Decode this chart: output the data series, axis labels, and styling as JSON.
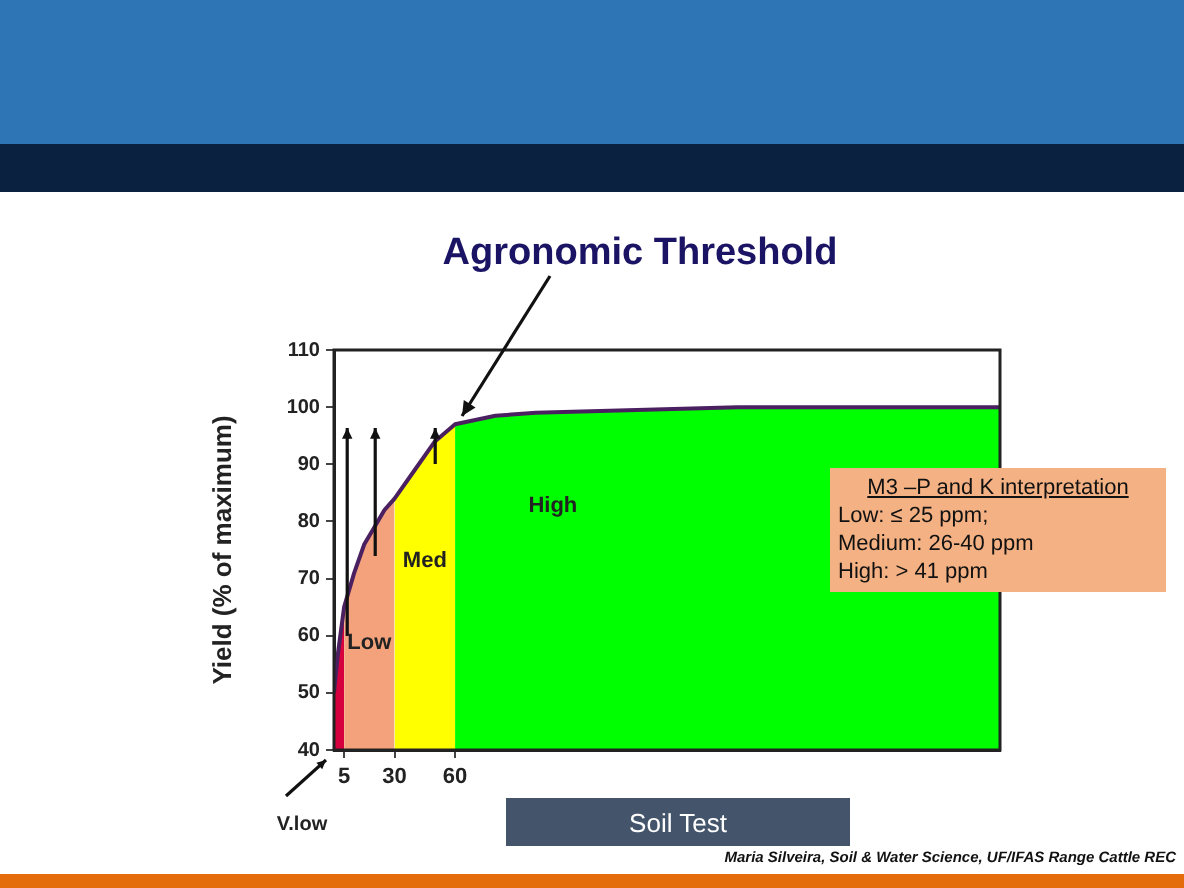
{
  "chart_data": {
    "type": "area",
    "title": "Agronomic Threshold",
    "xlabel": "Soil Test",
    "ylabel": "Yield (% of maximum)",
    "xlim": [
      0,
      330
    ],
    "xticks": [
      5,
      30,
      60
    ],
    "ylim": [
      40,
      110
    ],
    "yticks": [
      40,
      50,
      60,
      70,
      80,
      90,
      100,
      110
    ],
    "marker": "none",
    "series": [
      {
        "name": "V.low",
        "color": "#d6003f",
        "x": [
          0,
          2,
          5
        ],
        "values": [
          50,
          57,
          65
        ]
      },
      {
        "name": "Low",
        "color": "#f4a27c",
        "x": [
          5,
          10,
          15,
          20,
          25,
          30
        ],
        "values": [
          65,
          71,
          76,
          79,
          82,
          84
        ]
      },
      {
        "name": "Med",
        "color": "#ffff00",
        "x": [
          30,
          40,
          50,
          60
        ],
        "values": [
          84,
          89,
          94,
          97
        ]
      },
      {
        "name": "High",
        "color": "#00ff00",
        "x": [
          60,
          80,
          100,
          150,
          200,
          330
        ],
        "values": [
          97,
          98.5,
          99,
          99.5,
          100,
          100
        ]
      },
      {
        "type": "line",
        "color": "#4b2060",
        "x": [
          0,
          2,
          5,
          10,
          15,
          20,
          25,
          30,
          40,
          50,
          60,
          80,
          100,
          150,
          200,
          330
        ],
        "values": [
          50,
          57,
          65,
          71,
          76,
          79,
          82,
          84,
          89,
          94,
          97,
          98.5,
          99,
          99.5,
          100,
          100
        ]
      }
    ],
    "annotations": [
      "M3 –P and K interpretation",
      "Low: ≤ 25 ppm;",
      "Medium: 26-40 ppm",
      "High: > 41 ppm",
      "Maria Silveira, Soil & Water Science, UF/IFAS Range Cattle REC"
    ]
  }
}
